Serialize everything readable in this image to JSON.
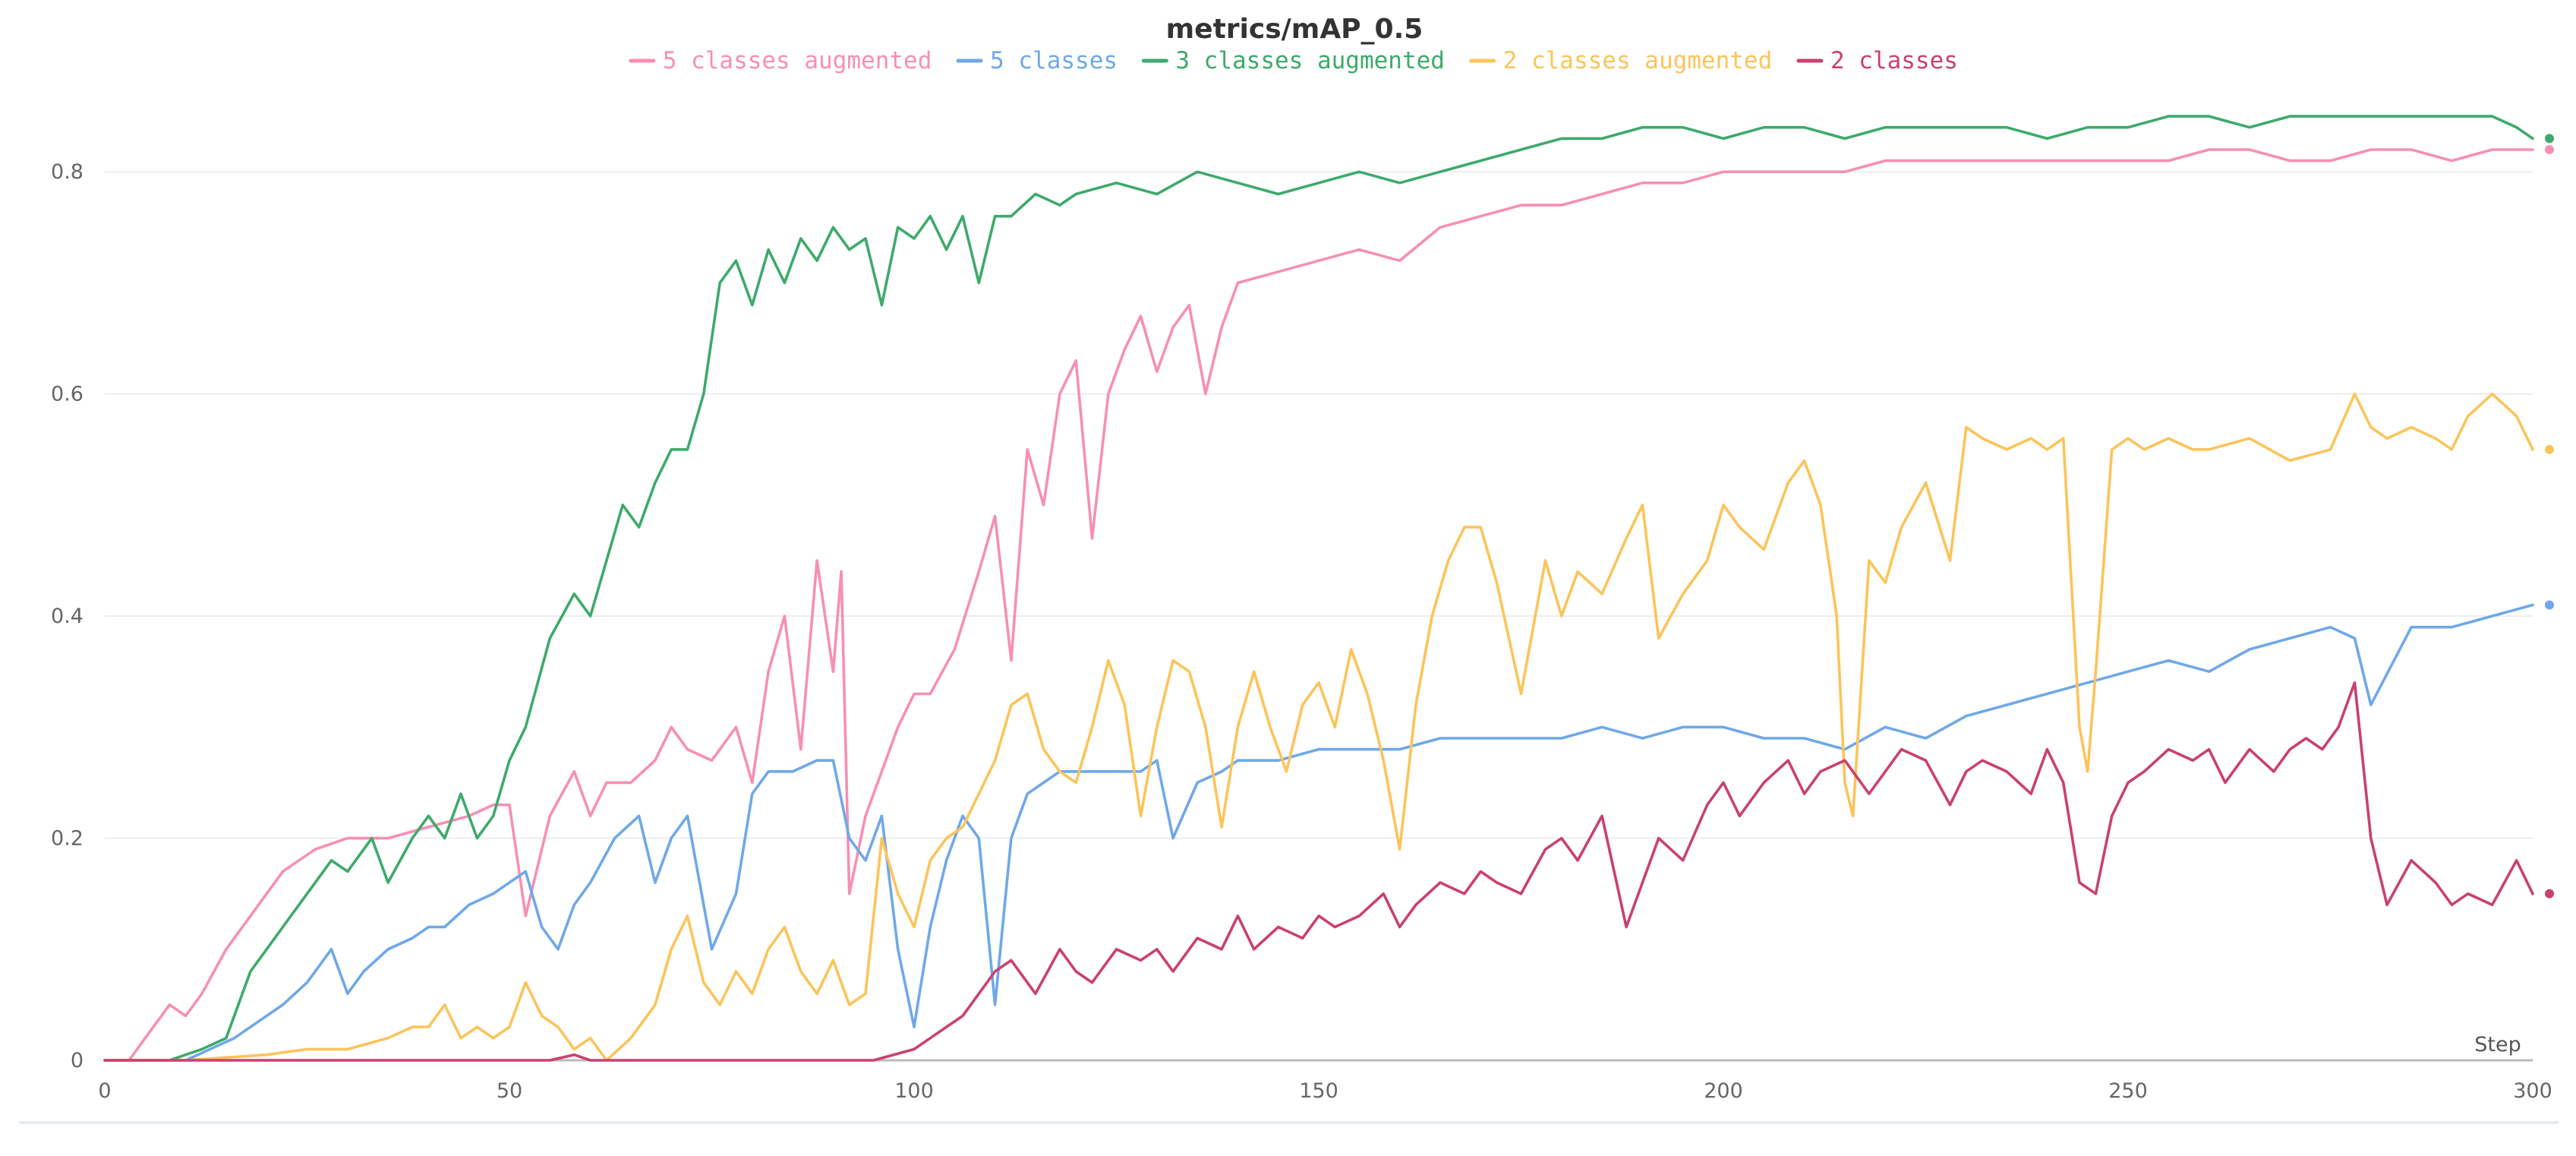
{
  "chart_data": {
    "type": "line",
    "title": "metrics/mAP_0.5",
    "xlabel": "Step",
    "ylabel": "",
    "xlim": [
      0,
      300
    ],
    "ylim": [
      0,
      0.9
    ],
    "xticks": [
      0,
      50,
      100,
      150,
      200,
      250,
      300
    ],
    "yticks": [
      0,
      0.2,
      0.4,
      0.6,
      0.8
    ],
    "grid": true,
    "legend_position": "top-center",
    "series": [
      {
        "name": "5 classes augmented",
        "color": "#f78fb3",
        "x": [
          0,
          3,
          6,
          8,
          10,
          12,
          15,
          18,
          22,
          26,
          30,
          35,
          40,
          45,
          48,
          50,
          52,
          55,
          58,
          60,
          62,
          65,
          68,
          70,
          72,
          75,
          78,
          80,
          82,
          84,
          86,
          88,
          90,
          91,
          92,
          94,
          96,
          98,
          100,
          102,
          105,
          108,
          110,
          112,
          114,
          116,
          118,
          120,
          122,
          124,
          126,
          128,
          130,
          132,
          134,
          136,
          138,
          140,
          145,
          150,
          155,
          160,
          165,
          170,
          175,
          180,
          185,
          190,
          195,
          200,
          205,
          210,
          215,
          220,
          225,
          230,
          235,
          240,
          245,
          250,
          255,
          260,
          265,
          270,
          275,
          280,
          285,
          290,
          295,
          300
        ],
        "values": [
          0,
          0,
          0.03,
          0.05,
          0.04,
          0.06,
          0.1,
          0.13,
          0.17,
          0.19,
          0.2,
          0.2,
          0.21,
          0.22,
          0.23,
          0.23,
          0.13,
          0.22,
          0.26,
          0.22,
          0.25,
          0.25,
          0.27,
          0.3,
          0.28,
          0.27,
          0.3,
          0.25,
          0.35,
          0.4,
          0.28,
          0.45,
          0.35,
          0.44,
          0.15,
          0.22,
          0.26,
          0.3,
          0.33,
          0.33,
          0.37,
          0.44,
          0.49,
          0.36,
          0.55,
          0.5,
          0.6,
          0.63,
          0.47,
          0.6,
          0.64,
          0.67,
          0.62,
          0.66,
          0.68,
          0.6,
          0.66,
          0.7,
          0.71,
          0.72,
          0.73,
          0.72,
          0.75,
          0.76,
          0.77,
          0.77,
          0.78,
          0.79,
          0.79,
          0.8,
          0.8,
          0.8,
          0.8,
          0.81,
          0.81,
          0.81,
          0.81,
          0.81,
          0.81,
          0.81,
          0.81,
          0.82,
          0.82,
          0.81,
          0.81,
          0.82,
          0.82,
          0.81,
          0.82,
          0.82
        ]
      },
      {
        "name": "5 classes",
        "color": "#6fa8e8",
        "x": [
          0,
          5,
          10,
          13,
          16,
          18,
          20,
          22,
          25,
          28,
          30,
          32,
          35,
          38,
          40,
          42,
          45,
          48,
          50,
          52,
          54,
          56,
          58,
          60,
          63,
          66,
          68,
          70,
          72,
          75,
          78,
          80,
          82,
          85,
          88,
          90,
          92,
          94,
          96,
          98,
          100,
          102,
          104,
          106,
          108,
          110,
          112,
          114,
          116,
          118,
          120,
          122,
          125,
          128,
          130,
          132,
          135,
          138,
          140,
          145,
          150,
          155,
          160,
          165,
          170,
          175,
          180,
          185,
          190,
          195,
          200,
          205,
          210,
          215,
          220,
          225,
          230,
          235,
          240,
          245,
          250,
          255,
          260,
          265,
          270,
          275,
          278,
          280,
          285,
          290,
          295,
          300
        ],
        "values": [
          0,
          0,
          0,
          0.01,
          0.02,
          0.03,
          0.04,
          0.05,
          0.07,
          0.1,
          0.06,
          0.08,
          0.1,
          0.11,
          0.12,
          0.12,
          0.14,
          0.15,
          0.16,
          0.17,
          0.12,
          0.1,
          0.14,
          0.16,
          0.2,
          0.22,
          0.16,
          0.2,
          0.22,
          0.1,
          0.15,
          0.24,
          0.26,
          0.26,
          0.27,
          0.27,
          0.2,
          0.18,
          0.22,
          0.1,
          0.03,
          0.12,
          0.18,
          0.22,
          0.2,
          0.05,
          0.2,
          0.24,
          0.25,
          0.26,
          0.26,
          0.26,
          0.26,
          0.26,
          0.27,
          0.2,
          0.25,
          0.26,
          0.27,
          0.27,
          0.28,
          0.28,
          0.28,
          0.29,
          0.29,
          0.29,
          0.29,
          0.3,
          0.29,
          0.3,
          0.3,
          0.29,
          0.29,
          0.28,
          0.3,
          0.29,
          0.31,
          0.32,
          0.33,
          0.34,
          0.35,
          0.36,
          0.35,
          0.37,
          0.38,
          0.39,
          0.38,
          0.32,
          0.39,
          0.39,
          0.4,
          0.41
        ]
      },
      {
        "name": "3 classes augmented",
        "color": "#3daa6b",
        "x": [
          0,
          5,
          8,
          10,
          12,
          15,
          18,
          20,
          22,
          25,
          28,
          30,
          33,
          35,
          38,
          40,
          42,
          44,
          46,
          48,
          50,
          52,
          55,
          58,
          60,
          62,
          64,
          66,
          68,
          70,
          72,
          74,
          76,
          78,
          80,
          82,
          84,
          86,
          88,
          90,
          92,
          94,
          96,
          98,
          100,
          102,
          104,
          106,
          108,
          110,
          112,
          115,
          118,
          120,
          125,
          130,
          135,
          140,
          145,
          150,
          155,
          160,
          165,
          170,
          175,
          180,
          185,
          190,
          195,
          200,
          205,
          210,
          215,
          220,
          225,
          230,
          235,
          240,
          245,
          250,
          255,
          260,
          265,
          270,
          275,
          280,
          285,
          290,
          295,
          298,
          300
        ],
        "values": [
          0,
          0,
          0,
          0.005,
          0.01,
          0.02,
          0.08,
          0.1,
          0.12,
          0.15,
          0.18,
          0.17,
          0.2,
          0.16,
          0.2,
          0.22,
          0.2,
          0.24,
          0.2,
          0.22,
          0.27,
          0.3,
          0.38,
          0.42,
          0.4,
          0.45,
          0.5,
          0.48,
          0.52,
          0.55,
          0.55,
          0.6,
          0.7,
          0.72,
          0.68,
          0.73,
          0.7,
          0.74,
          0.72,
          0.75,
          0.73,
          0.74,
          0.68,
          0.75,
          0.74,
          0.76,
          0.73,
          0.76,
          0.7,
          0.76,
          0.76,
          0.78,
          0.77,
          0.78,
          0.79,
          0.78,
          0.8,
          0.79,
          0.78,
          0.79,
          0.8,
          0.79,
          0.8,
          0.81,
          0.82,
          0.83,
          0.83,
          0.84,
          0.84,
          0.83,
          0.84,
          0.84,
          0.83,
          0.84,
          0.84,
          0.84,
          0.84,
          0.83,
          0.84,
          0.84,
          0.85,
          0.85,
          0.84,
          0.85,
          0.85,
          0.85,
          0.85,
          0.85,
          0.85,
          0.84,
          0.83
        ]
      },
      {
        "name": "2 classes augmented",
        "color": "#fbc45a",
        "x": [
          0,
          10,
          20,
          25,
          30,
          35,
          38,
          40,
          42,
          44,
          46,
          48,
          50,
          52,
          54,
          56,
          58,
          60,
          62,
          65,
          68,
          70,
          72,
          74,
          76,
          78,
          80,
          82,
          84,
          86,
          88,
          90,
          92,
          94,
          96,
          98,
          100,
          102,
          104,
          106,
          108,
          110,
          112,
          114,
          116,
          118,
          120,
          122,
          124,
          126,
          128,
          130,
          132,
          134,
          136,
          138,
          140,
          142,
          144,
          146,
          148,
          150,
          152,
          154,
          156,
          158,
          160,
          162,
          164,
          166,
          168,
          170,
          172,
          175,
          178,
          180,
          182,
          185,
          188,
          190,
          192,
          195,
          198,
          200,
          202,
          205,
          208,
          210,
          212,
          214,
          215,
          216,
          218,
          220,
          222,
          225,
          228,
          230,
          232,
          235,
          238,
          240,
          242,
          244,
          245,
          246,
          248,
          250,
          252,
          255,
          258,
          260,
          265,
          270,
          275,
          278,
          280,
          282,
          285,
          288,
          290,
          292,
          295,
          298,
          300
        ],
        "values": [
          0,
          0,
          0.005,
          0.01,
          0.01,
          0.02,
          0.03,
          0.03,
          0.05,
          0.02,
          0.03,
          0.02,
          0.03,
          0.07,
          0.04,
          0.03,
          0.01,
          0.02,
          0.0,
          0.02,
          0.05,
          0.1,
          0.13,
          0.07,
          0.05,
          0.08,
          0.06,
          0.1,
          0.12,
          0.08,
          0.06,
          0.09,
          0.05,
          0.06,
          0.2,
          0.15,
          0.12,
          0.18,
          0.2,
          0.21,
          0.24,
          0.27,
          0.32,
          0.33,
          0.28,
          0.26,
          0.25,
          0.3,
          0.36,
          0.32,
          0.22,
          0.3,
          0.36,
          0.35,
          0.3,
          0.21,
          0.3,
          0.35,
          0.3,
          0.26,
          0.32,
          0.34,
          0.3,
          0.37,
          0.33,
          0.27,
          0.19,
          0.32,
          0.4,
          0.45,
          0.48,
          0.48,
          0.43,
          0.33,
          0.45,
          0.4,
          0.44,
          0.42,
          0.47,
          0.5,
          0.38,
          0.42,
          0.45,
          0.5,
          0.48,
          0.46,
          0.52,
          0.54,
          0.5,
          0.4,
          0.25,
          0.22,
          0.45,
          0.43,
          0.48,
          0.52,
          0.45,
          0.57,
          0.56,
          0.55,
          0.56,
          0.55,
          0.56,
          0.3,
          0.26,
          0.35,
          0.55,
          0.56,
          0.55,
          0.56,
          0.55,
          0.55,
          0.56,
          0.54,
          0.55,
          0.6,
          0.57,
          0.56,
          0.57,
          0.56,
          0.55,
          0.58,
          0.6,
          0.58,
          0.55
        ]
      },
      {
        "name": "2 classes",
        "color": "#c9416f",
        "x": [
          0,
          20,
          40,
          55,
          58,
          60,
          90,
          95,
          100,
          102,
          104,
          106,
          108,
          110,
          112,
          115,
          118,
          120,
          122,
          125,
          128,
          130,
          132,
          135,
          138,
          140,
          142,
          145,
          148,
          150,
          152,
          155,
          158,
          160,
          162,
          165,
          168,
          170,
          172,
          175,
          178,
          180,
          182,
          185,
          188,
          190,
          192,
          195,
          198,
          200,
          202,
          205,
          208,
          210,
          212,
          215,
          218,
          220,
          222,
          225,
          228,
          230,
          232,
          235,
          238,
          240,
          242,
          244,
          246,
          248,
          250,
          252,
          255,
          258,
          260,
          262,
          265,
          268,
          270,
          272,
          274,
          276,
          278,
          280,
          282,
          285,
          288,
          290,
          292,
          295,
          298,
          300
        ],
        "values": [
          0,
          0,
          0,
          0,
          0.005,
          0,
          0,
          0,
          0.01,
          0.02,
          0.03,
          0.04,
          0.06,
          0.08,
          0.09,
          0.06,
          0.1,
          0.08,
          0.07,
          0.1,
          0.09,
          0.1,
          0.08,
          0.11,
          0.1,
          0.13,
          0.1,
          0.12,
          0.11,
          0.13,
          0.12,
          0.13,
          0.15,
          0.12,
          0.14,
          0.16,
          0.15,
          0.17,
          0.16,
          0.15,
          0.19,
          0.2,
          0.18,
          0.22,
          0.12,
          0.16,
          0.2,
          0.18,
          0.23,
          0.25,
          0.22,
          0.25,
          0.27,
          0.24,
          0.26,
          0.27,
          0.24,
          0.26,
          0.28,
          0.27,
          0.23,
          0.26,
          0.27,
          0.26,
          0.24,
          0.28,
          0.25,
          0.16,
          0.15,
          0.22,
          0.25,
          0.26,
          0.28,
          0.27,
          0.28,
          0.25,
          0.28,
          0.26,
          0.28,
          0.29,
          0.28,
          0.3,
          0.34,
          0.2,
          0.14,
          0.18,
          0.16,
          0.14,
          0.15,
          0.14,
          0.18,
          0.15
        ]
      }
    ]
  }
}
